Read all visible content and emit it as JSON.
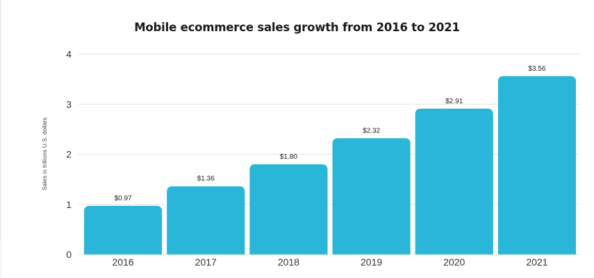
{
  "chart_data": {
    "type": "bar",
    "title": "Mobile ecommerce sales growth from 2016 to 2021",
    "xlabel": "",
    "ylabel": "Sales in trillions U.S. dollars",
    "categories": [
      "2016",
      "2017",
      "2018",
      "2019",
      "2020",
      "2021"
    ],
    "values": [
      0.97,
      1.36,
      1.8,
      2.32,
      2.91,
      3.56
    ],
    "data_labels": [
      "$0.97",
      "$1.36",
      "$1.80",
      "$2.32",
      "$2.91",
      "$3.56"
    ],
    "ylim": [
      0,
      4
    ],
    "yticks": [
      0,
      1,
      2,
      3,
      4
    ],
    "grid": true,
    "legend": "none",
    "bar_color": "#29b6d8",
    "grid_color": "#e3e3e3"
  }
}
